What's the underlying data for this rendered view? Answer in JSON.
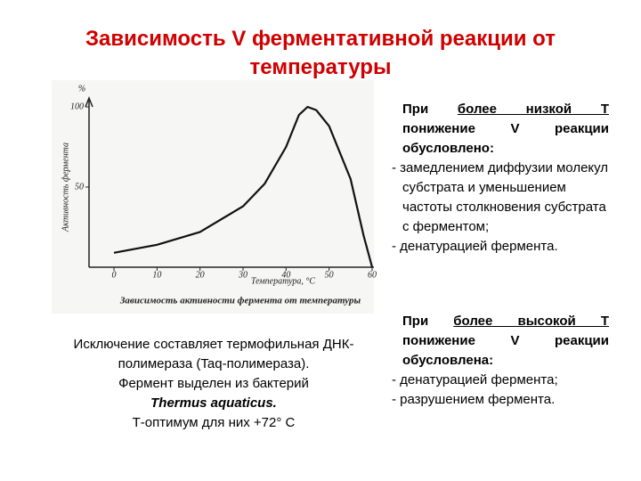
{
  "title": "Зависимость V ферментативной реакции от температуры",
  "chart_data": {
    "type": "line",
    "y_label": "Активность фермента",
    "y_unit": "%",
    "x_label": "Температура, °C",
    "caption": "Зависимость активности фермента от температуры",
    "x": [
      0,
      10,
      20,
      30,
      35,
      40,
      43,
      45,
      47,
      50,
      55,
      58,
      60
    ],
    "values": [
      9,
      14,
      22,
      38,
      52,
      75,
      95,
      100,
      98,
      88,
      55,
      20,
      0
    ],
    "color": "#111111",
    "xlim": [
      -5.8,
      60
    ],
    "ylim": [
      0,
      105
    ],
    "xticks": [
      0,
      10,
      20,
      30,
      40,
      50,
      60
    ],
    "yticks": [
      50,
      100
    ]
  },
  "low_t": {
    "heading": [
      "При ",
      "более низкой Т",
      " понижение V реакции обусловлено:"
    ],
    "items": [
      "- замедлением диффузии молекул субстрата и уменьшением частоты столкновения субстрата с ферментом;",
      "- денатурацией фермента."
    ]
  },
  "high_t": {
    "heading": [
      "При ",
      "более высокой Т",
      " понижение V реакции обусловлена:"
    ],
    "items": [
      "- денатурацией фермента;",
      "- разрушением фермента."
    ]
  },
  "note": {
    "line1": "Исключение составляет термофильная ДНК-полимераза (Taq-полимераза).",
    "line2": "Фермент выделен из бактерий",
    "species": "Thermus aquaticus.",
    "line3": "Т-оптимум для них +72° С"
  }
}
